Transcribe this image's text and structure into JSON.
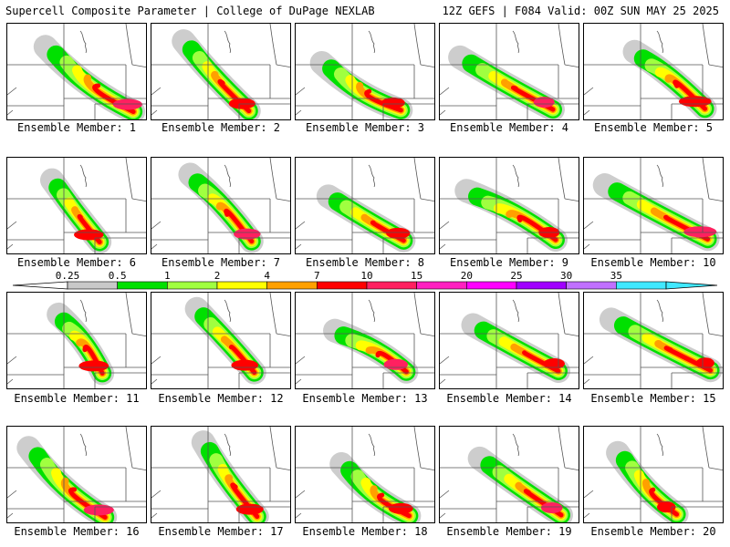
{
  "header": {
    "title_left": "Supercell Composite Parameter | College of DuPage NEXLAB",
    "title_right": "12Z GEFS | F084 Valid: 00Z SUN MAY 25 2025"
  },
  "member_label_prefix": "Ensemble Member:",
  "members": [
    {
      "id": 1,
      "label": "Ensemble Member: 1"
    },
    {
      "id": 2,
      "label": "Ensemble Member: 2"
    },
    {
      "id": 3,
      "label": "Ensemble Member: 3"
    },
    {
      "id": 4,
      "label": "Ensemble Member: 4"
    },
    {
      "id": 5,
      "label": "Ensemble Member: 5"
    },
    {
      "id": 6,
      "label": "Ensemble Member: 6"
    },
    {
      "id": 7,
      "label": "Ensemble Member: 7"
    },
    {
      "id": 8,
      "label": "Ensemble Member: 8"
    },
    {
      "id": 9,
      "label": "Ensemble Member: 9"
    },
    {
      "id": 10,
      "label": "Ensemble Member: 10"
    },
    {
      "id": 11,
      "label": "Ensemble Member: 11"
    },
    {
      "id": 12,
      "label": "Ensemble Member: 12"
    },
    {
      "id": 13,
      "label": "Ensemble Member: 13"
    },
    {
      "id": 14,
      "label": "Ensemble Member: 14"
    },
    {
      "id": 15,
      "label": "Ensemble Member: 15"
    },
    {
      "id": 16,
      "label": "Ensemble Member: 16"
    },
    {
      "id": 17,
      "label": "Ensemble Member: 17"
    },
    {
      "id": 18,
      "label": "Ensemble Member: 18"
    },
    {
      "id": 19,
      "label": "Ensemble Member: 19"
    },
    {
      "id": 20,
      "label": "Ensemble Member: 20"
    }
  ],
  "colorbar": {
    "tick_labels": [
      "0.25",
      "0.5",
      "1",
      "2",
      "4",
      "7",
      "10",
      "15",
      "20",
      "25",
      "30",
      "35"
    ],
    "colors": [
      "#c8c8c8",
      "#00e000",
      "#a0ff40",
      "#ffff00",
      "#ffa000",
      "#ff0000",
      "#ff2060",
      "#ff20c0",
      "#ff00ff",
      "#a000ff",
      "#c070ff",
      "#40e8ff"
    ]
  }
}
